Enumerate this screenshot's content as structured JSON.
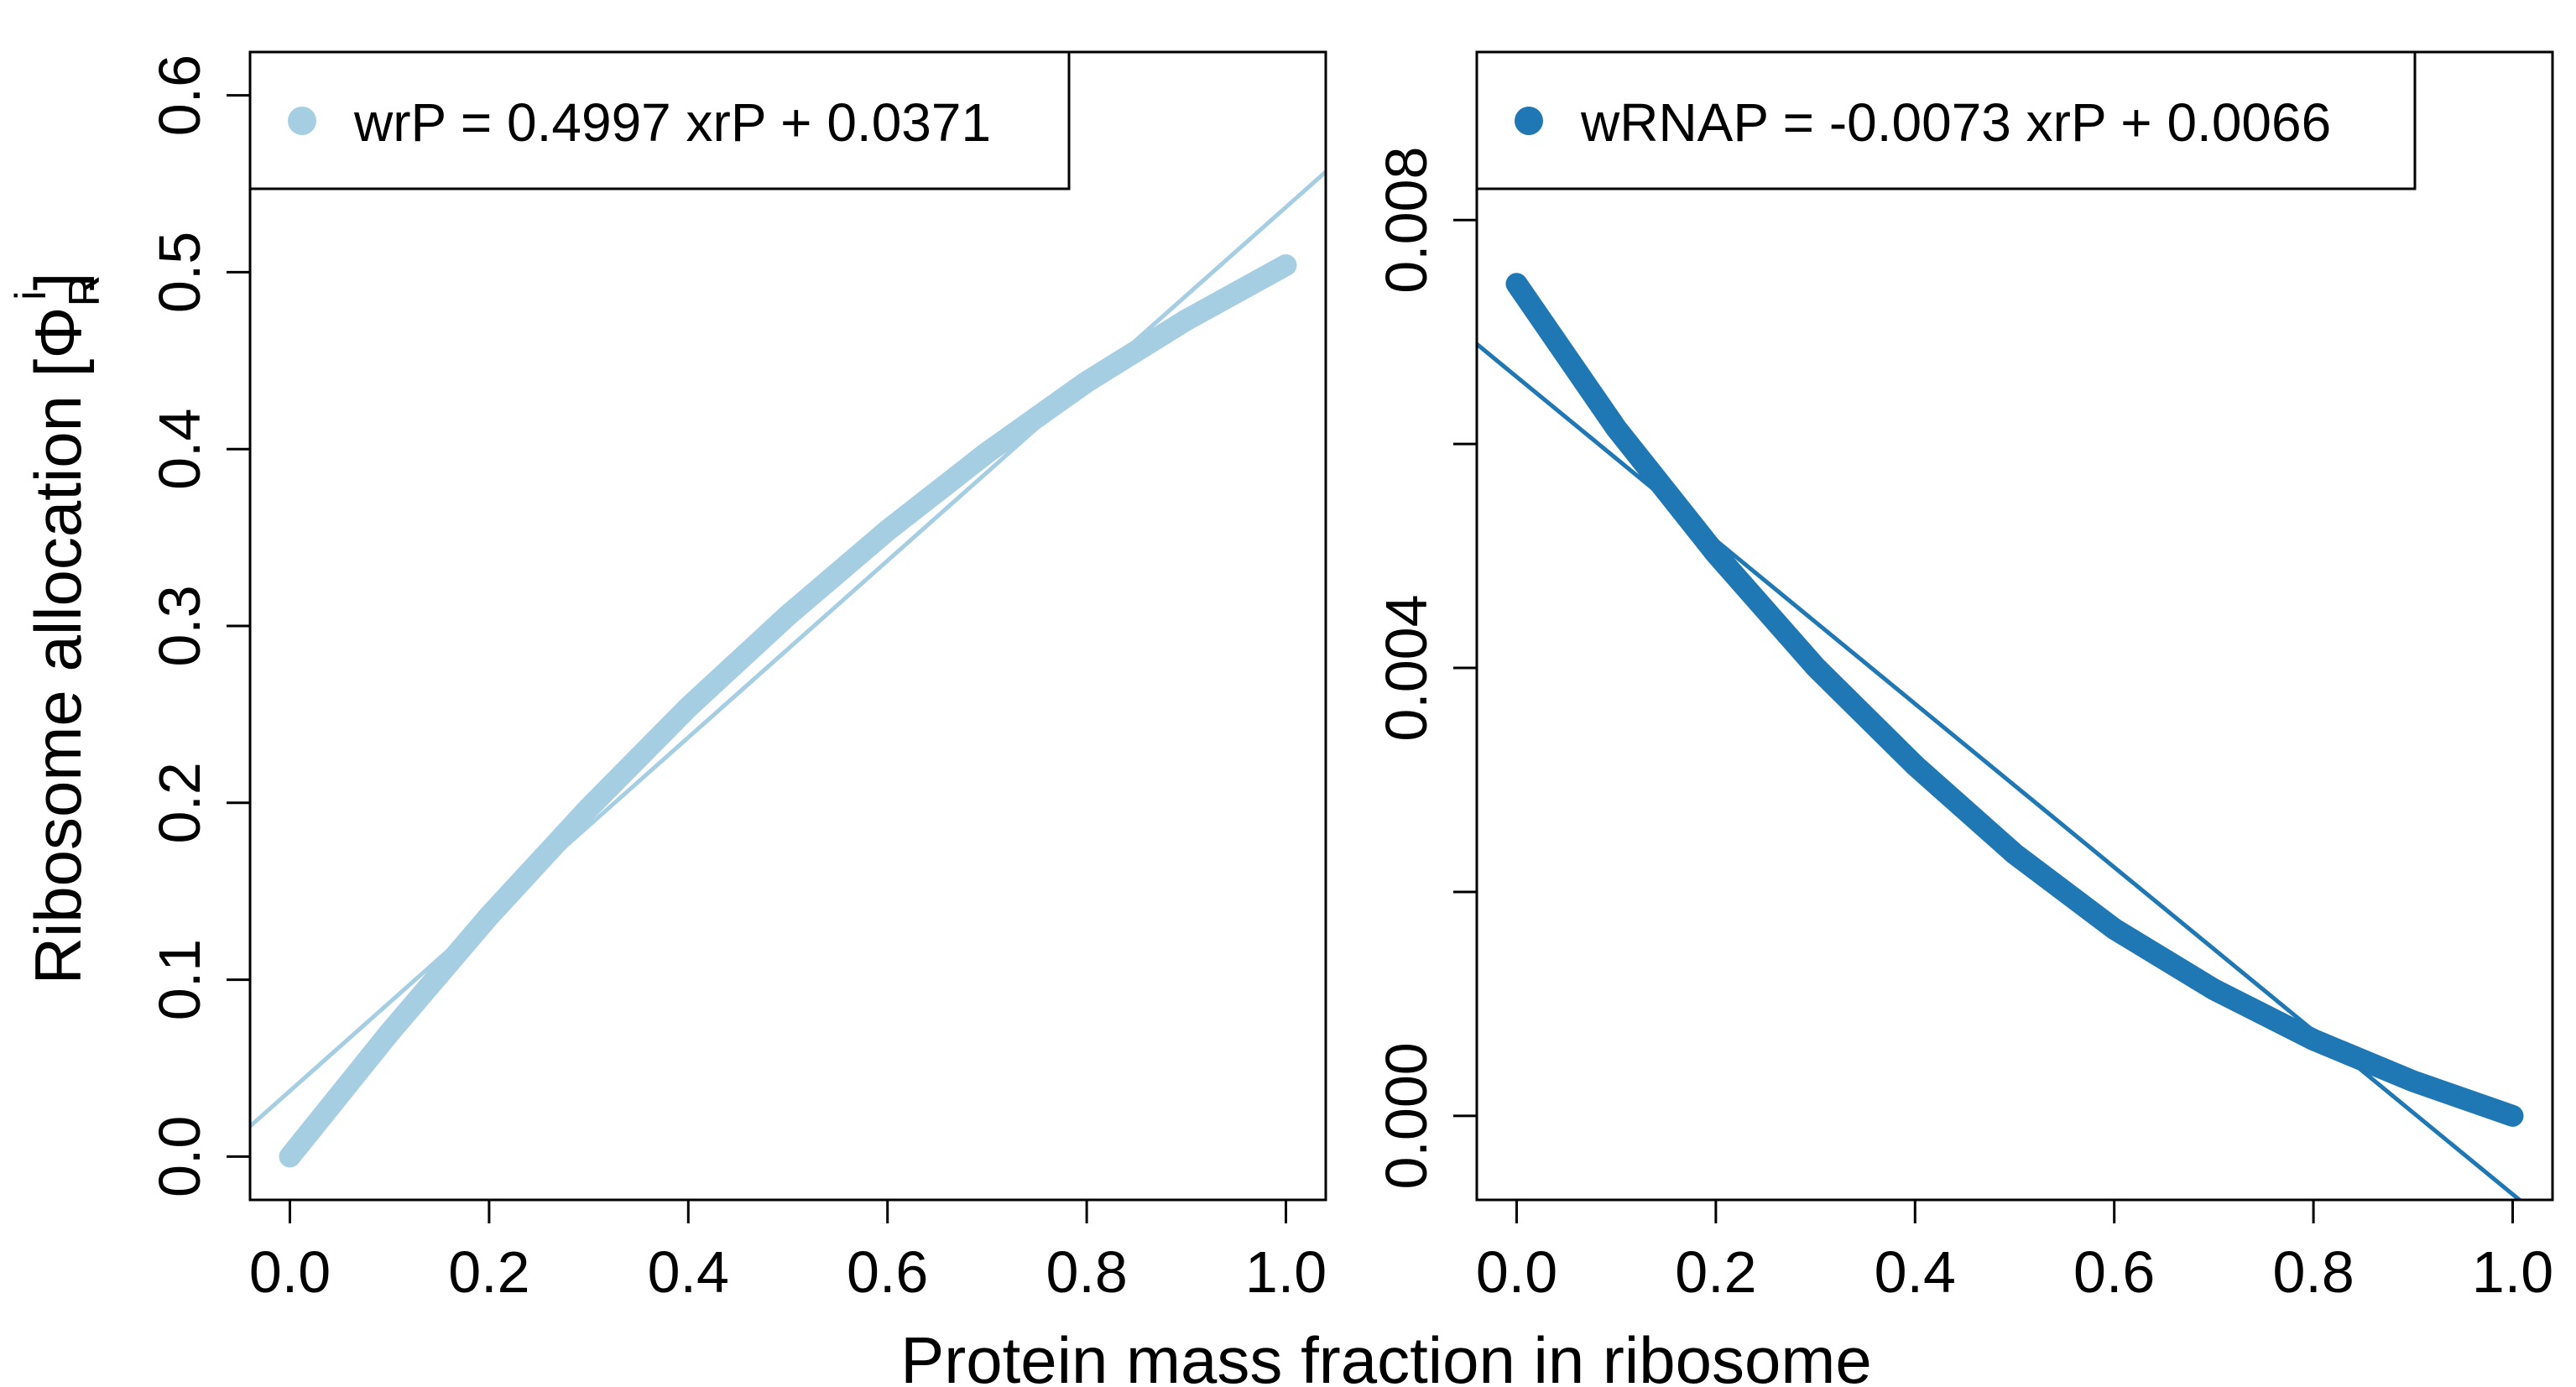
{
  "figure": {
    "ylabel_main": "Ribosome allocation [Φ",
    "ylabel_sub": "R",
    "ylabel_sup": "i",
    "ylabel_close": "]",
    "xlabel": "Protein mass fraction in ribosome"
  },
  "chart_data": [
    {
      "type": "scatter",
      "id": "left",
      "color": "#a6cee3",
      "xlim": [
        -0.04,
        1.04
      ],
      "ylim": [
        -0.0245,
        0.6245
      ],
      "xticks": [
        0.0,
        0.2,
        0.4,
        0.6,
        0.8,
        1.0
      ],
      "xtick_labels": [
        "0.0",
        "0.2",
        "0.4",
        "0.6",
        "0.8",
        "1.0"
      ],
      "yticks": [
        0.0,
        0.1,
        0.2,
        0.3,
        0.4,
        0.5,
        0.6
      ],
      "ytick_labels": [
        "0.0",
        "0.1",
        "0.2",
        "0.3",
        "0.4",
        "0.5",
        "0.6"
      ],
      "legend": {
        "label": "wrP = 0.4997 xrP + 0.0371",
        "position": "top-left"
      },
      "curve": {
        "x": [
          0.0,
          0.1,
          0.2,
          0.3,
          0.4,
          0.5,
          0.6,
          0.7,
          0.8,
          0.9,
          1.0
        ],
        "y": [
          0.0,
          0.07,
          0.136,
          0.197,
          0.254,
          0.306,
          0.354,
          0.398,
          0.438,
          0.473,
          0.504
        ]
      },
      "fit": {
        "slope": 0.4997,
        "intercept": 0.0371
      }
    },
    {
      "type": "scatter",
      "id": "right",
      "color": "#1f78b4",
      "xlim": [
        -0.04,
        1.04
      ],
      "ylim": [
        -0.00075,
        0.0095
      ],
      "xticks": [
        0.0,
        0.2,
        0.4,
        0.6,
        0.8,
        1.0
      ],
      "xtick_labels": [
        "0.0",
        "0.2",
        "0.4",
        "0.6",
        "0.8",
        "1.0"
      ],
      "yticks": [
        0.0,
        0.002,
        0.004,
        0.006,
        0.008,
        0.01
      ],
      "yticks_labeled": [
        0.0,
        0.004,
        0.008
      ],
      "ytick_labels": [
        "0.000",
        "0.004",
        "0.008"
      ],
      "legend": {
        "label": "wRNAP = -0.0073 xrP + 0.0066",
        "position": "top-left"
      },
      "curve": {
        "x": [
          0.0,
          0.1,
          0.2,
          0.3,
          0.4,
          0.5,
          0.6,
          0.7,
          0.8,
          0.9,
          1.0
        ],
        "y": [
          0.00743,
          0.00614,
          0.00502,
          0.00401,
          0.00313,
          0.00234,
          0.00167,
          0.00113,
          0.00068,
          0.00031,
          0.0
        ]
      },
      "fit": {
        "slope": -0.0073,
        "intercept": 0.0066
      }
    }
  ]
}
